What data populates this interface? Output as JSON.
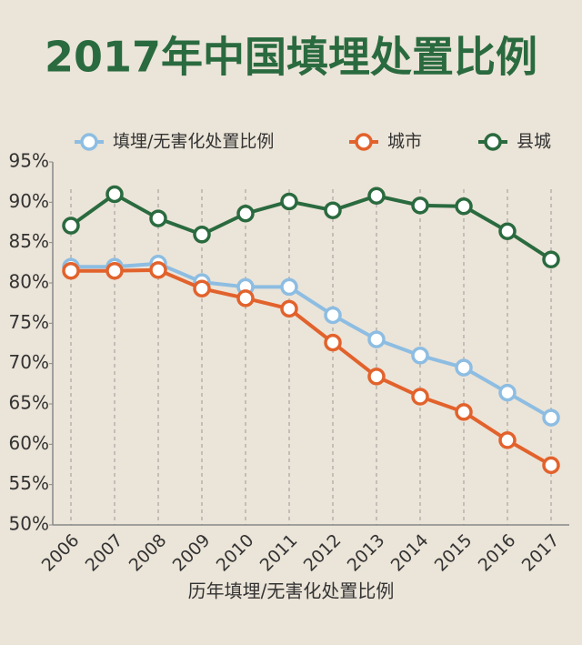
{
  "chart_data": {
    "type": "line",
    "title": "2017年中国填埋处置比例",
    "x_label": "历年填埋/无害化处置比例",
    "categories": [
      "2006",
      "2007",
      "2008",
      "2009",
      "2010",
      "2011",
      "2012",
      "2013",
      "2014",
      "2015",
      "2016",
      "2017"
    ],
    "series": [
      {
        "name": "填埋/无害化处置比例",
        "color": "#8dbde2",
        "values": [
          82.0,
          82.0,
          82.4,
          80.1,
          79.5,
          79.5,
          76.0,
          73.0,
          71.0,
          69.5,
          66.4,
          63.3
        ]
      },
      {
        "name": "城市",
        "color": "#e2622c",
        "values": [
          81.5,
          81.5,
          81.6,
          79.3,
          78.1,
          76.8,
          72.6,
          68.4,
          65.9,
          64.0,
          60.5,
          57.4
        ]
      },
      {
        "name": "县城",
        "color": "#2a6a3f",
        "values": [
          87.1,
          91.0,
          88.0,
          86.0,
          88.6,
          90.1,
          89.0,
          90.8,
          89.6,
          89.5,
          86.4,
          82.9
        ]
      }
    ],
    "ylim": [
      50,
      95
    ],
    "yticks": [
      {
        "value": 50,
        "label": "50%"
      },
      {
        "value": 55,
        "label": "55%"
      },
      {
        "value": 60,
        "label": "60%"
      },
      {
        "value": 65,
        "label": "65%"
      },
      {
        "value": 70,
        "label": "70%"
      },
      {
        "value": 75,
        "label": "75%"
      },
      {
        "value": 80,
        "label": "80%"
      },
      {
        "value": 85,
        "label": "85%"
      },
      {
        "value": 90,
        "label": "90%"
      },
      {
        "value": 95,
        "label": "95%"
      }
    ],
    "grid": true
  }
}
